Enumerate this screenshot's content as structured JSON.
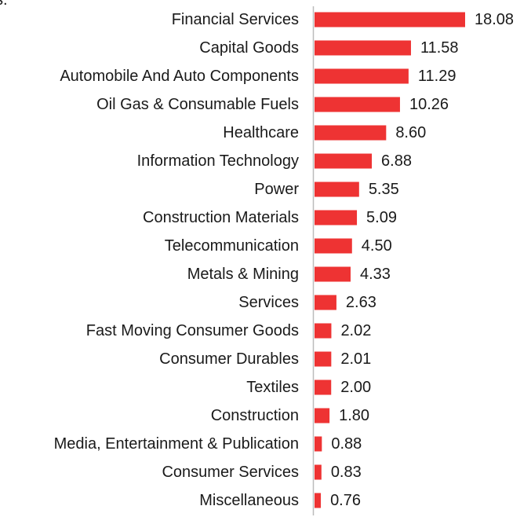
{
  "chart_data": {
    "type": "bar",
    "orientation": "horizontal",
    "title": "",
    "xlabel": "",
    "ylabel": "",
    "grid": false,
    "legend": "none",
    "bar_color": "#ee3333",
    "axis_color": "#bbbbbb",
    "top_left_fragment": "s.",
    "categories": [
      "Financial Services",
      "Capital Goods",
      "Automobile And Auto Components",
      "Oil Gas & Consumable Fuels",
      "Healthcare",
      "Information Technology",
      "Power",
      "Construction Materials",
      "Telecommunication",
      "Metals & Mining",
      "Services",
      "Fast Moving Consumer Goods",
      "Consumer Durables",
      "Textiles",
      "Construction",
      "Media, Entertainment & Publication",
      "Consumer Services",
      "Miscellaneous"
    ],
    "values": [
      18.08,
      11.58,
      11.29,
      10.26,
      8.6,
      6.88,
      5.35,
      5.09,
      4.5,
      4.33,
      2.63,
      2.02,
      2.01,
      2.0,
      1.8,
      0.88,
      0.83,
      0.76
    ],
    "value_labels": [
      "18.08",
      "11.58",
      "11.29",
      "10.26",
      "8.60",
      "6.88",
      "5.35",
      "5.09",
      "4.50",
      "4.33",
      "2.63",
      "2.02",
      "2.01",
      "2.00",
      "1.80",
      "0.88",
      "0.83",
      "0.76"
    ]
  }
}
